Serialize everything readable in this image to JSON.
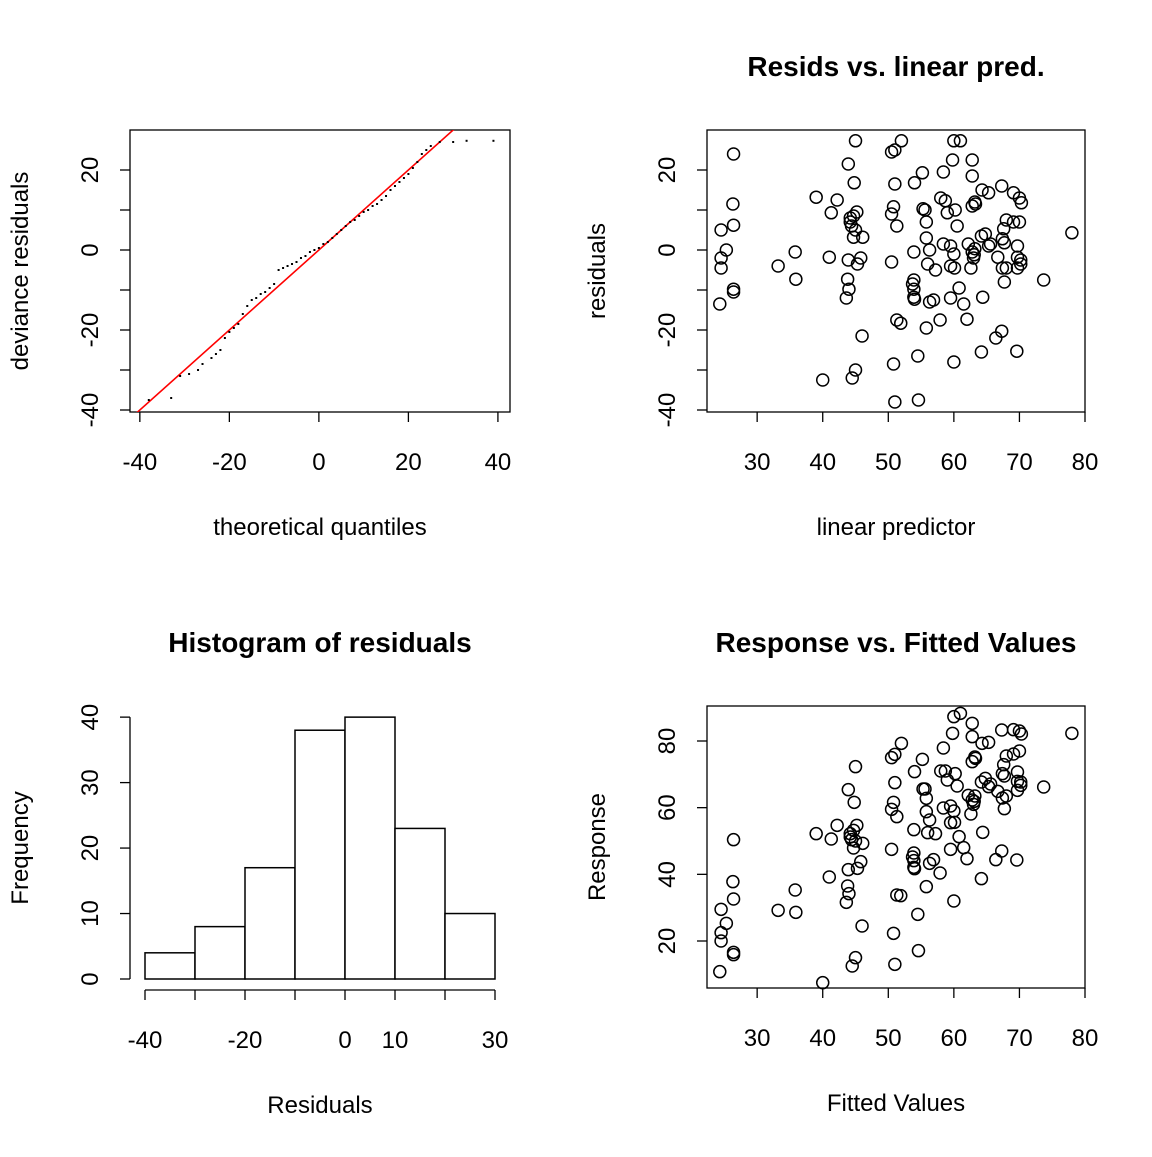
{
  "chart_data": [
    {
      "type": "qq",
      "x_label": "theoretical quantiles",
      "y_label": "deviance residuals",
      "x": [
        -38,
        -33,
        -31,
        -29,
        -27,
        -26,
        -24,
        -23,
        -22,
        -21,
        -20,
        -19,
        -18,
        -17,
        -16,
        -15,
        -14,
        -13,
        -12,
        -11,
        -10,
        -9,
        -8,
        -7,
        -6,
        -5,
        -4,
        -3,
        -2,
        -1,
        0,
        1,
        2,
        3,
        4,
        5,
        6,
        7,
        8,
        9,
        10,
        11,
        12,
        13,
        14,
        15,
        16,
        17,
        18,
        19,
        20,
        21,
        22,
        23,
        24,
        25,
        27,
        30,
        33,
        39
      ],
      "values": [
        -37.5,
        -37,
        -31.5,
        -31,
        -30,
        -28.5,
        -27,
        -26,
        -25,
        -22,
        -20.5,
        -19.5,
        -18.5,
        -16,
        -14,
        -12.5,
        -12,
        -11,
        -10.5,
        -9.5,
        -8.5,
        -5,
        -4.5,
        -4,
        -3.5,
        -3,
        -2,
        -1.5,
        -0.5,
        0,
        0.5,
        1.5,
        2,
        3,
        4,
        5,
        6,
        7,
        7.5,
        8.5,
        9.5,
        10,
        11,
        11.5,
        12.5,
        13.5,
        15,
        16,
        17,
        18,
        19,
        20.5,
        22,
        24,
        25,
        26,
        27,
        27,
        27.3,
        27.3
      ],
      "color": "#000000",
      "reference_line": {
        "x": [
          -45,
          45
        ],
        "y": [
          -45,
          45
        ],
        "color": "#ff0000"
      },
      "xlim": [
        -42.2,
        42.7
      ],
      "ylim": [
        -40.5,
        30
      ],
      "xticks": [
        -40,
        -20,
        0,
        20,
        40
      ],
      "yticks": [
        -40,
        -20,
        0,
        20
      ],
      "yminorticks": [
        -30,
        -10,
        10
      ]
    },
    {
      "type": "scatter",
      "title": "Resids vs. linear pred.",
      "x_label": "linear predictor",
      "y_label": "residuals",
      "x": [
        24.5,
        24.5,
        24.5,
        24.3,
        25.3,
        26.3,
        26.4,
        26.4,
        26.4,
        26.4,
        33.2,
        35.8,
        35.9,
        39,
        40,
        41,
        41.3,
        42.2,
        43.9,
        44.2,
        44.2,
        44.4,
        44.7,
        45,
        44.7,
        43.8,
        43.6,
        43.9,
        44,
        44.5,
        45,
        44.8,
        45.2,
        45.3,
        45,
        45.8,
        46.1,
        46,
        50.5,
        51,
        51,
        50.8,
        50.5,
        51.3,
        50.5,
        51.3,
        51.9,
        50.8,
        51,
        52,
        54,
        55.2,
        55.3,
        55.6,
        55.8,
        55.8,
        53.9,
        53.9,
        53.7,
        53.9,
        53.9,
        54,
        56,
        56.3,
        56.9,
        55.8,
        54.5,
        54.6,
        56.3,
        57.2,
        58,
        58.4,
        58.4,
        58.7,
        59,
        59.5,
        59.5,
        59.5,
        57.9,
        60,
        59.8,
        60,
        60.1,
        60.2,
        60.5,
        60,
        61,
        60.8,
        61.5,
        62.2,
        62,
        62.6,
        62.8,
        62.8,
        62.8,
        63.2,
        62.8,
        63,
        63.2,
        63.1,
        63.3,
        64.2,
        64.8,
        64.3,
        64.4,
        64.2,
        65.3,
        65.3,
        65.6,
        67.3,
        66.7,
        66.4,
        67.3,
        67.6,
        67.4,
        67.7,
        68,
        67.4,
        68,
        67.7,
        69.1,
        69.1,
        70,
        69.7,
        69.7,
        70.2,
        69.7,
        70.2,
        70.3,
        69.6,
        70,
        78,
        73.7
      ],
      "values": [
        -2,
        -4.5,
        5,
        -13.5,
        0,
        11.5,
        24,
        6.2,
        -9.8,
        -10.5,
        -4,
        -0.5,
        -7.3,
        13.2,
        -32.5,
        -1.8,
        9.3,
        12.5,
        21.5,
        8,
        7,
        6,
        8.5,
        5,
        3.2,
        -7.3,
        -12,
        -2.5,
        -9.8,
        -32,
        27.3,
        16.8,
        9.5,
        -3.5,
        -30,
        -2,
        3.2,
        -21.5,
        24.5,
        25,
        16.5,
        10.8,
        9,
        6,
        -3,
        -17.5,
        -18.3,
        -28.5,
        -38,
        27.3,
        16.8,
        19.3,
        10.3,
        10,
        7,
        3,
        -0.5,
        -7.5,
        -8.5,
        -9.8,
        -11.8,
        -12.3,
        -3.5,
        -13,
        -12.5,
        -19.5,
        -26.5,
        -37.5,
        0,
        -5,
        13,
        19.5,
        1.5,
        12.3,
        9.3,
        1,
        -4,
        -12,
        -17.5,
        27.3,
        22.5,
        -1,
        -4.5,
        10,
        6,
        -28,
        27.3,
        -9.5,
        -13.5,
        1.5,
        -17.3,
        -4.5,
        22.5,
        18.5,
        11,
        12,
        -0.5,
        -2,
        0.3,
        -1.2,
        11.5,
        3.5,
        4,
        15,
        -11.8,
        -25.5,
        14.3,
        1,
        1.5,
        16,
        -1.8,
        -22,
        -20.3,
        5.3,
        2.8,
        1.8,
        7.5,
        -4.5,
        -4.5,
        -8,
        14.3,
        7,
        7,
        1,
        -1.8,
        -2.5,
        -4.5,
        -3.5,
        11.8,
        -25.3,
        13,
        4.3,
        -7.5
      ],
      "color": "#000000",
      "xlim": [
        22.35,
        80
      ],
      "ylim": [
        -40.5,
        30
      ],
      "xticks": [
        30,
        40,
        50,
        60,
        70,
        80
      ],
      "yticks": [
        -40,
        -20,
        0,
        20
      ],
      "yminorticks": [
        -30,
        -10,
        10
      ]
    },
    {
      "type": "histogram",
      "title": "Histogram of residuals",
      "x_label": "Residuals",
      "y_label": "Frequency",
      "bins": [
        -40,
        -30,
        -20,
        -10,
        0,
        10,
        20,
        30
      ],
      "values": [
        4,
        8,
        17,
        38,
        40,
        23,
        10
      ],
      "color": "#ffffff",
      "xlim": [
        -43,
        33
      ],
      "ylim": [
        -1.68,
        41.7
      ],
      "xticks": [
        -40,
        -20,
        0,
        10,
        30
      ],
      "yticks": [
        0,
        10,
        20,
        30,
        40
      ]
    },
    {
      "type": "scatter",
      "title": "Response vs. Fitted Values",
      "x_label": "Fitted Values",
      "y_label": "Response",
      "x": [
        24.5,
        24.5,
        24.5,
        24.3,
        25.3,
        26.3,
        26.4,
        26.4,
        26.4,
        26.4,
        33.2,
        35.8,
        35.9,
        39,
        40,
        41,
        41.3,
        42.2,
        43.9,
        44.2,
        44.2,
        44.4,
        44.7,
        45,
        44.7,
        43.8,
        43.6,
        43.9,
        44,
        44.5,
        45,
        44.8,
        45.2,
        45.3,
        45,
        45.8,
        46.1,
        46,
        50.5,
        51,
        51,
        50.8,
        50.5,
        51.3,
        50.5,
        51.3,
        51.9,
        50.8,
        51,
        52,
        54,
        55.2,
        55.3,
        55.6,
        55.8,
        55.8,
        53.9,
        53.9,
        53.7,
        53.9,
        53.9,
        54,
        56,
        56.3,
        56.9,
        55.8,
        54.5,
        54.6,
        56.3,
        57.2,
        58,
        58.4,
        58.4,
        58.7,
        59,
        59.5,
        59.5,
        59.5,
        57.9,
        60,
        59.8,
        60,
        60.1,
        60.2,
        60.5,
        60,
        61,
        60.8,
        61.5,
        62.2,
        62,
        62.6,
        62.8,
        62.8,
        62.8,
        63.2,
        62.8,
        63,
        63.2,
        63.1,
        63.3,
        64.2,
        64.8,
        64.3,
        64.4,
        64.2,
        65.3,
        65.3,
        65.6,
        67.3,
        66.7,
        66.4,
        67.3,
        67.6,
        67.4,
        67.7,
        68,
        67.4,
        68,
        67.7,
        69.1,
        69.1,
        70,
        69.7,
        69.7,
        70.2,
        69.7,
        70.2,
        70.3,
        69.6,
        70,
        78,
        73.7
      ],
      "values": [
        22.5,
        20,
        29.5,
        10.8,
        25.3,
        37.8,
        50.4,
        32.6,
        16.6,
        15.9,
        29.2,
        35.3,
        28.6,
        52.2,
        7.5,
        39.2,
        50.6,
        54.7,
        65.4,
        52.2,
        51.2,
        50.4,
        53.2,
        50,
        47.9,
        36.5,
        31.6,
        41.4,
        34.2,
        12.5,
        72.3,
        61.6,
        54.7,
        41.8,
        15,
        43.8,
        49.3,
        24.5,
        75,
        76,
        67.5,
        61.6,
        59.5,
        57.3,
        47.5,
        33.8,
        33.6,
        22.3,
        13,
        79.3,
        70.8,
        74.5,
        65.6,
        65.6,
        62.8,
        58.8,
        53.4,
        46.4,
        45.2,
        44.1,
        42.1,
        41.7,
        52.5,
        43.3,
        44.4,
        36.3,
        28,
        17.1,
        56.3,
        52.2,
        71,
        77.9,
        59.9,
        71,
        68.3,
        60.5,
        55.5,
        47.5,
        40.4,
        87.3,
        82.3,
        59,
        55.6,
        70.2,
        66.5,
        32,
        88.3,
        51.3,
        48,
        63.7,
        44.7,
        58.1,
        85.3,
        81.3,
        73.8,
        75.2,
        62.3,
        61,
        63.5,
        61.9,
        74.8,
        67.7,
        68.8,
        79.3,
        52.6,
        38.7,
        79.6,
        66.3,
        67.1,
        83.3,
        64.9,
        44.4,
        47,
        72.9,
        70.2,
        69.5,
        75.5,
        62.9,
        63.5,
        59.7,
        83.4,
        76.1,
        77,
        70.7,
        67.9,
        67.7,
        65.2,
        66.7,
        82.1,
        44.3,
        83,
        82.3,
        66.2
      ],
      "color": "#000000",
      "xlim": [
        22.35,
        80
      ],
      "ylim": [
        5.9,
        90.5
      ],
      "xticks": [
        30,
        40,
        50,
        60,
        70,
        80
      ],
      "yticks": [
        20,
        40,
        60,
        80
      ]
    }
  ]
}
